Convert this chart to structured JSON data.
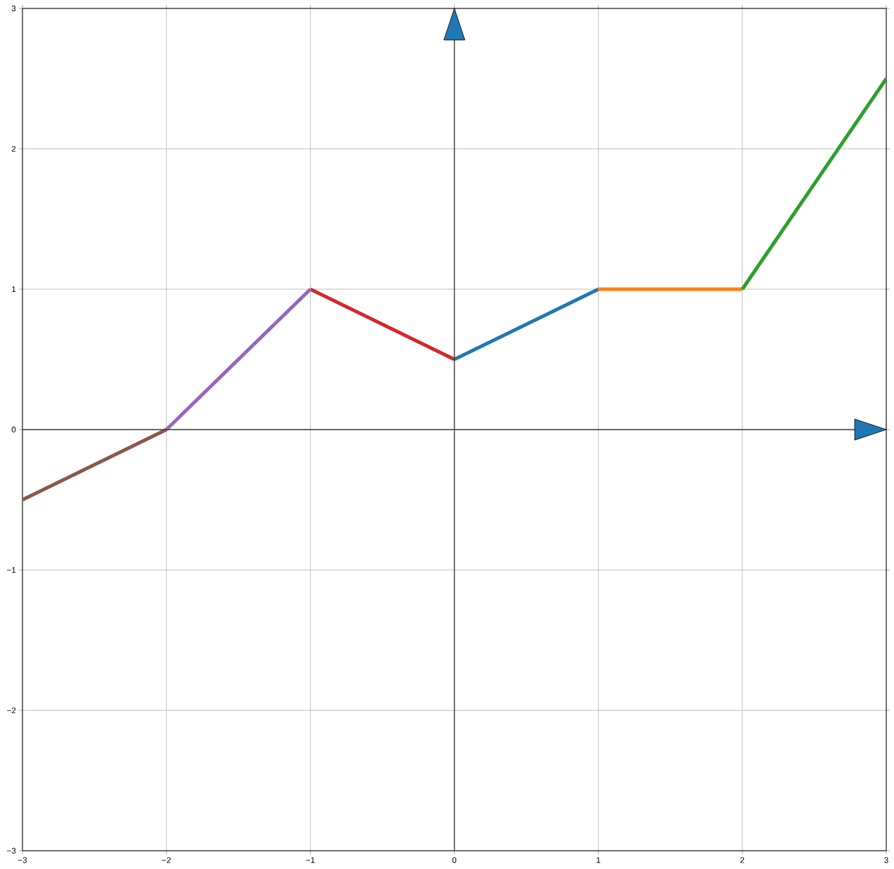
{
  "chart_data": {
    "type": "line",
    "series": [
      {
        "color": "#1f77b4",
        "x": [
          0,
          1
        ],
        "values": [
          0.5,
          1
        ]
      },
      {
        "color": "#ff7f0e",
        "x": [
          1,
          2
        ],
        "values": [
          1,
          1
        ]
      },
      {
        "color": "#2ca02c",
        "x": [
          2,
          3
        ],
        "values": [
          1,
          2.5
        ]
      },
      {
        "color": "#d62728",
        "x": [
          -1,
          0
        ],
        "values": [
          1,
          0.5
        ]
      },
      {
        "color": "#9467bd",
        "x": [
          -2,
          -1
        ],
        "values": [
          0,
          1
        ]
      },
      {
        "color": "#8c564b",
        "x": [
          -3,
          -2
        ],
        "values": [
          -0.5,
          0
        ]
      }
    ],
    "xlim": [
      -3,
      3
    ],
    "ylim": [
      -3,
      3
    ],
    "xticks": [
      {
        "value": -3,
        "label": "−3"
      },
      {
        "value": -2,
        "label": "−2"
      },
      {
        "value": -1,
        "label": "−1"
      },
      0,
      1,
      2,
      3
    ],
    "yticks": [
      {
        "value": -3,
        "label": "−3"
      },
      {
        "value": -2,
        "label": "−2"
      },
      {
        "value": -1,
        "label": "−1"
      },
      0,
      1,
      2,
      3
    ],
    "grid": true,
    "marker": "none",
    "line_style": "solid"
  }
}
